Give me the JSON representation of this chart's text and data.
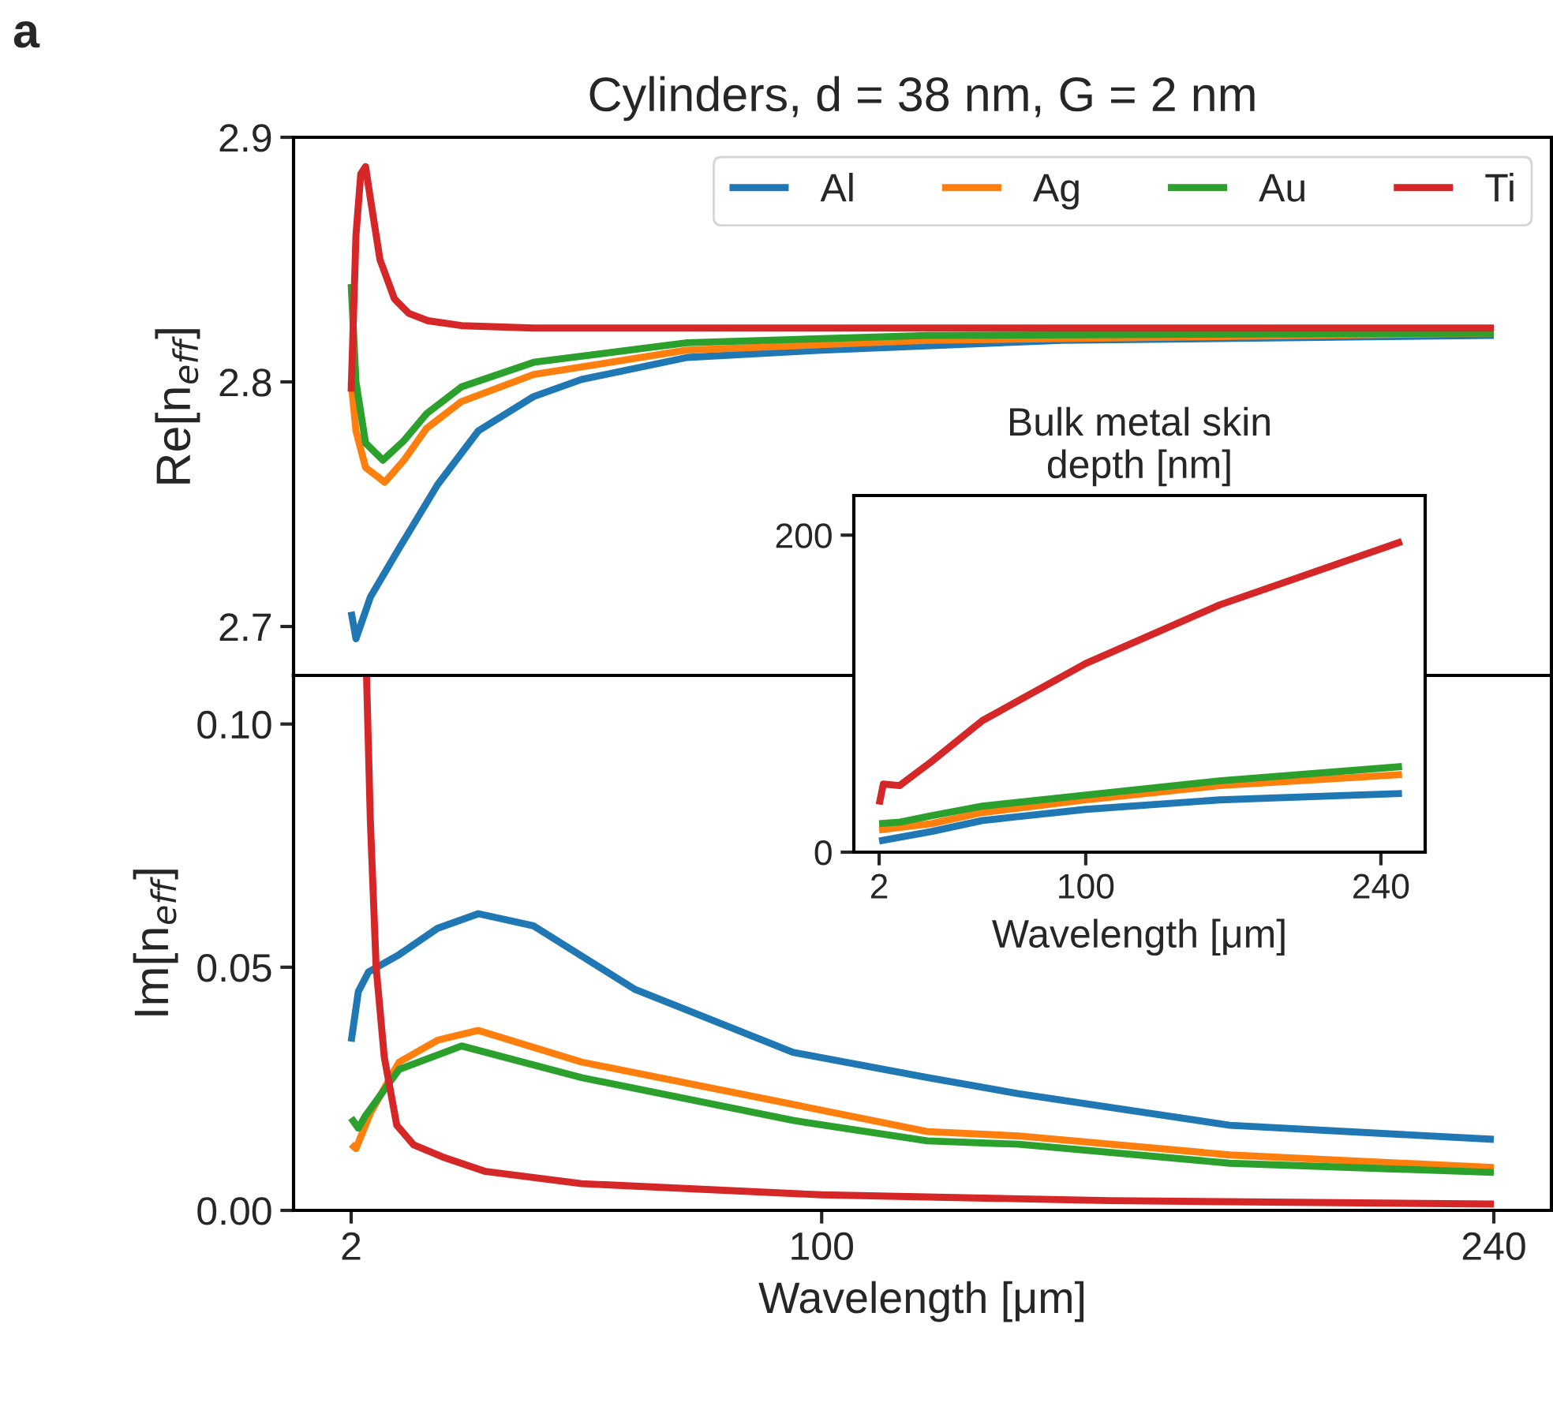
{
  "chart_data": [
    {
      "type": "line",
      "title": "Cylinders, d = 38 nm, G = 2 nm",
      "ylabel": "Re[n$_{eff}$]",
      "annotations": [
        "a"
      ],
      "xlim": [
        -10,
        252
      ],
      "ylim": [
        2.68,
        2.9
      ],
      "yticks": [
        2.7,
        2.8,
        2.9
      ],
      "tick_labels": "y",
      "legend": "top right",
      "grid": false,
      "series": [
        {
          "name": "Al",
          "color": "#1f77b4",
          "x": [
            2,
            3,
            6,
            12,
            20,
            28.5,
            40,
            50,
            72,
            100,
            150,
            240
          ],
          "values": [
            2.706,
            2.695,
            2.712,
            2.732,
            2.758,
            2.78,
            2.794,
            2.801,
            2.81,
            2.813,
            2.817,
            2.819
          ]
        },
        {
          "name": "Ag",
          "color": "#ff7f0e",
          "x": [
            2,
            3,
            5,
            9,
            13,
            17.7,
            25,
            40,
            72,
            122,
            240
          ],
          "values": [
            2.8,
            2.78,
            2.765,
            2.759,
            2.768,
            2.781,
            2.792,
            2.803,
            2.813,
            2.817,
            2.82
          ]
        },
        {
          "name": "Au",
          "color": "#2ca02c",
          "x": [
            2,
            3,
            5,
            8.6,
            13,
            17.7,
            25,
            40,
            72,
            122,
            240
          ],
          "values": [
            2.84,
            2.8,
            2.775,
            2.768,
            2.776,
            2.787,
            2.798,
            2.808,
            2.816,
            2.819,
            2.82
          ]
        },
        {
          "name": "Ti",
          "color": "#d62728",
          "x": [
            2,
            3,
            4,
            5,
            6,
            8,
            11,
            14,
            18,
            25,
            40,
            240
          ],
          "values": [
            2.796,
            2.86,
            2.885,
            2.888,
            2.875,
            2.85,
            2.834,
            2.828,
            2.825,
            2.823,
            2.822,
            2.822
          ]
        }
      ]
    },
    {
      "type": "line",
      "xlabel": "Wavelength [μm]",
      "ylabel": "Im[n$_{eff}$]",
      "xlim": [
        -10,
        252
      ],
      "ylim": [
        0,
        0.11
      ],
      "xticks": [
        2,
        100,
        240
      ],
      "yticks": [
        {
          "value": 0,
          "label": "0.00"
        },
        0.05,
        {
          "value": 0.1,
          "label": "0.10"
        }
      ],
      "grid": false,
      "series": [
        {
          "color": "#1f77b4",
          "x": [
            2,
            3.5,
            5.6,
            12,
            20,
            28.5,
            40,
            61,
            94,
            122,
            141,
            185,
            240
          ],
          "values": [
            0.0347,
            0.045,
            0.049,
            0.0526,
            0.058,
            0.061,
            0.0585,
            0.0455,
            0.0325,
            0.0273,
            0.024,
            0.0175,
            0.0146
          ]
        },
        {
          "color": "#ff7f0e",
          "x": [
            2,
            3,
            6,
            12,
            20,
            28.5,
            50,
            94,
            122,
            141,
            185,
            240
          ],
          "values": [
            0.0136,
            0.0127,
            0.02,
            0.0305,
            0.035,
            0.037,
            0.0305,
            0.0218,
            0.0162,
            0.0153,
            0.0114,
            0.0088
          ]
        },
        {
          "color": "#2ca02c",
          "x": [
            2,
            3.5,
            5,
            12,
            25,
            50,
            94,
            122,
            141,
            185,
            240
          ],
          "values": [
            0.019,
            0.0169,
            0.0195,
            0.029,
            0.0338,
            0.0273,
            0.0185,
            0.0143,
            0.0136,
            0.0097,
            0.0078
          ]
        },
        {
          "color": "#d62728",
          "x": [
            5.2,
            6,
            7.2,
            8.9,
            11.5,
            15,
            21,
            30,
            50,
            100,
            160,
            240
          ],
          "values": [
            0.11,
            0.08,
            0.05,
            0.0315,
            0.0175,
            0.0135,
            0.011,
            0.008,
            0.0055,
            0.0032,
            0.002,
            0.0013
          ]
        }
      ]
    },
    {
      "type": "line",
      "title": "Bulk metal skin\ndepth [nm]",
      "xlabel": "Wavelength [μm]",
      "xlim": [
        -10,
        261
      ],
      "ylim": [
        0,
        225
      ],
      "xticks": [
        2,
        100,
        240
      ],
      "yticks": [
        0,
        200
      ],
      "grid": false,
      "series": [
        {
          "color": "#1f77b4",
          "x": [
            2,
            26.7,
            51,
            100,
            163.5,
            250
          ],
          "values": [
            7,
            13,
            20,
            27,
            33,
            37
          ]
        },
        {
          "color": "#ff7f0e",
          "x": [
            2,
            26.7,
            51,
            100,
            163.5,
            250
          ],
          "values": [
            14,
            18,
            25,
            33,
            42,
            49
          ]
        },
        {
          "color": "#2ca02c",
          "x": [
            2,
            12,
            26.7,
            51,
            100,
            163.5,
            250
          ],
          "values": [
            18,
            19,
            23,
            29,
            36,
            45,
            54
          ]
        },
        {
          "color": "#d62728",
          "x": [
            2,
            4,
            11.7,
            26.7,
            51,
            100,
            163.5,
            250
          ],
          "values": [
            30,
            43,
            42,
            57,
            83,
            119,
            156,
            196
          ]
        }
      ]
    }
  ]
}
